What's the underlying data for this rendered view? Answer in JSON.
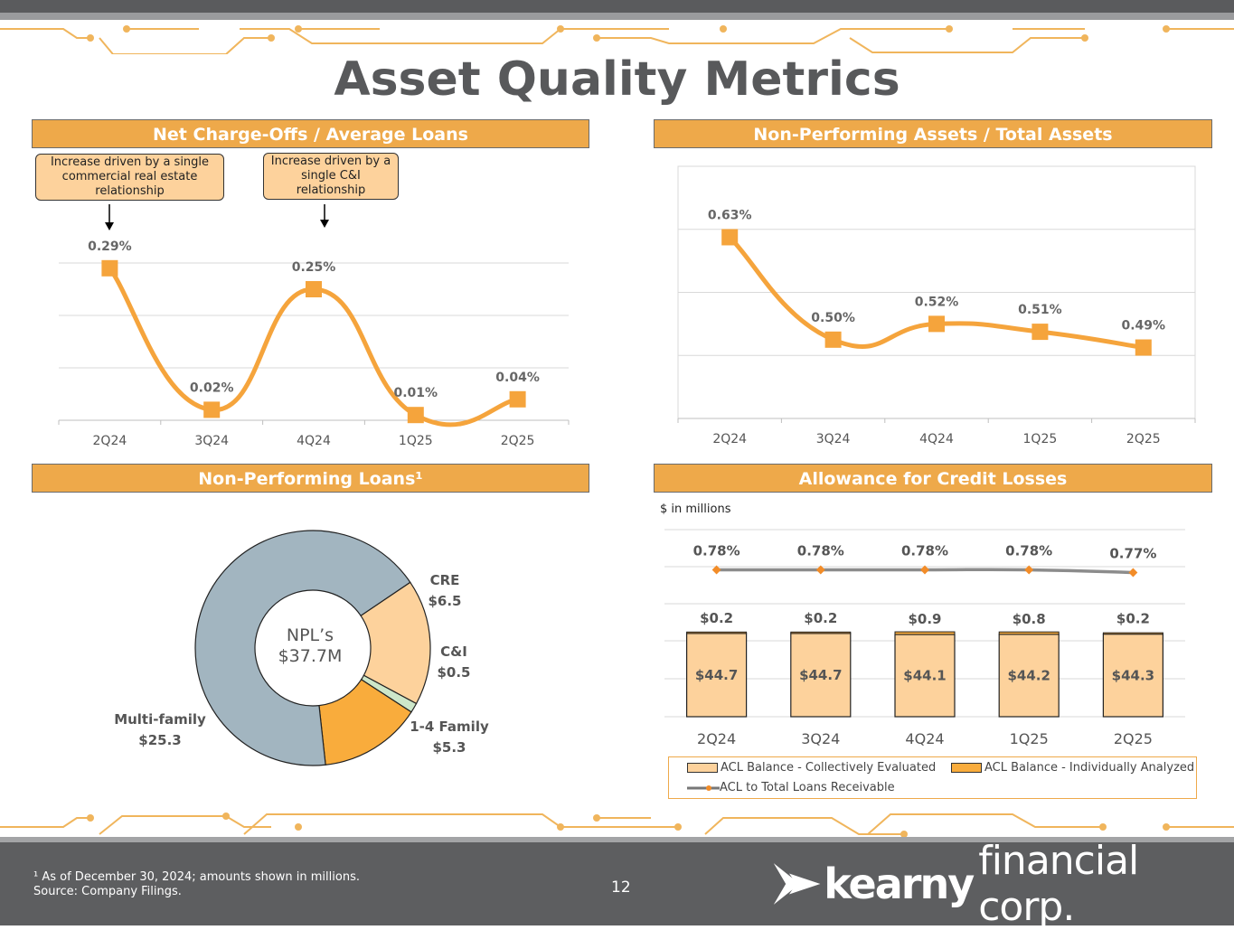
{
  "title": "Asset Quality Metrics",
  "panels": {
    "nco": "Net Charge-Offs / Average Loans",
    "npa": "Non-Performing Assets / Total Assets",
    "npl": "Non-Performing Loans¹",
    "acl": "Allowance for Credit Losses"
  },
  "callouts": {
    "cre": "Increase driven by a single commercial real estate relationship",
    "ci": "Increase driven by a single C&I relationship"
  },
  "acl_units": "$ in millions",
  "npl_center": {
    "line1": "NPL’s",
    "line2": "$37.7M"
  },
  "footnote": {
    "line1": "¹ As of December 30, 2024; amounts shown in millions.",
    "line2": "Source: Company Filings."
  },
  "page_number": "12",
  "logo": {
    "bold": "kearny",
    "light": "financial corp."
  },
  "colors": {
    "orange": "#f5a43c",
    "header": "#eea94a",
    "light_orange": "#fdd29c",
    "grey_blue": "#a2b5c0",
    "light_green": "#cde7c9",
    "dark_grey": "#5d5e60"
  },
  "chart_data": [
    {
      "type": "line",
      "name": "nco",
      "categories": [
        "2Q24",
        "3Q24",
        "4Q24",
        "1Q25",
        "2Q25"
      ],
      "values": [
        0.29,
        0.02,
        0.25,
        0.01,
        0.04
      ],
      "labels": [
        "0.29%",
        "0.02%",
        "0.25%",
        "0.01%",
        "0.04%"
      ],
      "ylim": [
        0,
        0.4
      ],
      "grid": true
    },
    {
      "type": "line",
      "name": "npa",
      "categories": [
        "2Q24",
        "3Q24",
        "4Q24",
        "1Q25",
        "2Q25"
      ],
      "values": [
        0.63,
        0.5,
        0.52,
        0.51,
        0.49
      ],
      "labels": [
        "0.63%",
        "0.50%",
        "0.52%",
        "0.51%",
        "0.49%"
      ],
      "ylim": [
        0.4,
        0.72
      ],
      "grid": true
    },
    {
      "type": "pie",
      "name": "npl",
      "slices": [
        {
          "label": "CRE",
          "value": 6.5,
          "value_label": "$6.5",
          "color": "#fdd29c"
        },
        {
          "label": "C&I",
          "value": 0.5,
          "value_label": "$0.5",
          "color": "#cde7c9"
        },
        {
          "label": "1-4 Family",
          "value": 5.3,
          "value_label": "$5.3",
          "color": "#f9ac3c"
        },
        {
          "label": "Multi-family",
          "value": 25.3,
          "value_label": "$25.3",
          "color": "#a2b5c0"
        }
      ]
    },
    {
      "type": "bar",
      "name": "acl",
      "categories": [
        "2Q24",
        "3Q24",
        "4Q24",
        "1Q25",
        "2Q25"
      ],
      "series": [
        {
          "name": "ACL Balance - Collectively Evaluated",
          "values": [
            44.7,
            44.7,
            44.1,
            44.2,
            44.3
          ],
          "labels": [
            "$44.7",
            "$44.7",
            "$44.1",
            "$44.2",
            "$44.3"
          ]
        },
        {
          "name": "ACL Balance - Individually Analyzed",
          "values": [
            0.2,
            0.2,
            0.9,
            0.8,
            0.2
          ],
          "labels": [
            "$0.2",
            "$0.2",
            "$0.9",
            "$0.8",
            "$0.2"
          ]
        },
        {
          "name": "ACL to Total Loans Receivable",
          "type": "line",
          "values": [
            0.78,
            0.78,
            0.78,
            0.78,
            0.77
          ],
          "labels": [
            "0.78%",
            "0.78%",
            "0.78%",
            "0.78%",
            "0.77%"
          ]
        }
      ]
    }
  ]
}
